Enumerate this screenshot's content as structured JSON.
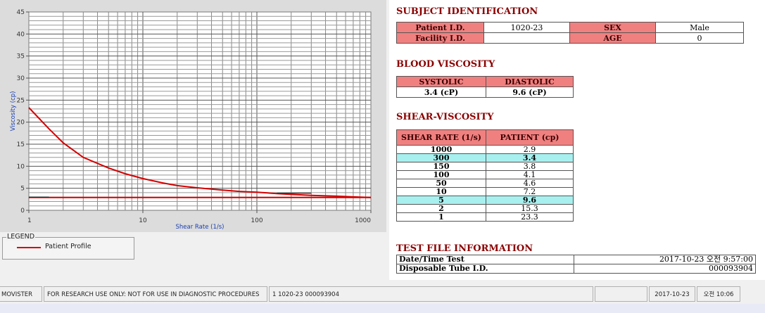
{
  "chart_data": {
    "type": "line",
    "xlabel": "Shear Rate (1/s)",
    "ylabel": "Viscosity (cp)",
    "xscale": "log",
    "xlim": [
      1,
      1000
    ],
    "ylim": [
      0,
      45
    ],
    "x_ticks": [
      "1",
      "10",
      "100",
      "1000"
    ],
    "y_ticks": [
      "0",
      "5",
      "10",
      "15",
      "20",
      "25",
      "30",
      "35",
      "40",
      "45"
    ],
    "grid": true,
    "series": [
      {
        "name": "Patient Profile",
        "color": "#d40000",
        "x": [
          1,
          1.5,
          2,
          3,
          5,
          7,
          10,
          15,
          20,
          30,
          50,
          70,
          100,
          150,
          200,
          300,
          500,
          700,
          1000
        ],
        "y": [
          23.3,
          18.5,
          15.3,
          12.0,
          9.6,
          8.3,
          7.2,
          6.2,
          5.6,
          5.1,
          4.6,
          4.3,
          4.1,
          3.8,
          3.6,
          3.4,
          3.2,
          3.05,
          2.9
        ]
      },
      {
        "color": "#d40000",
        "x": [
          1,
          1000
        ],
        "y": [
          2.9,
          2.9
        ]
      },
      {
        "color": "#333333",
        "x": [
          1,
          1.5
        ],
        "y": [
          3.0,
          3.0
        ]
      },
      {
        "color": "#333333",
        "x": [
          150,
          300
        ],
        "y": [
          3.9,
          3.9
        ]
      }
    ]
  },
  "legend": {
    "title": "LEGEND",
    "items": [
      {
        "label": "Patient Profile",
        "color": "#d40000"
      }
    ]
  },
  "subject": {
    "title": "SUBJECT IDENTIFICATION",
    "patient_id_label": "Patient I.D.",
    "patient_id": "1020-23",
    "sex_label": "SEX",
    "sex": "Male",
    "facility_id_label": "Facility I.D.",
    "facility_id": "",
    "age_label": "AGE",
    "age": "0"
  },
  "blood": {
    "title": "BLOOD VISCOSITY",
    "systolic_label": "SYSTOLIC",
    "diastolic_label": "DIASTOLIC",
    "systolic": "3.4 (cP)",
    "diastolic": "9.6 (cP)"
  },
  "shear": {
    "title": "SHEAR-VISCOSITY",
    "col_rate": "SHEAR RATE (1/s)",
    "col_patient": "PATIENT (cp)",
    "highlight_color": "#a8f0f0",
    "rows": [
      {
        "rate": "1000",
        "val": "2.9",
        "hl": false
      },
      {
        "rate": "300",
        "val": "3.4",
        "hl": true
      },
      {
        "rate": "150",
        "val": "3.8",
        "hl": false
      },
      {
        "rate": "100",
        "val": "4.1",
        "hl": false
      },
      {
        "rate": "50",
        "val": "4.6",
        "hl": false
      },
      {
        "rate": "10",
        "val": "7.2",
        "hl": false
      },
      {
        "rate": "5",
        "val": "9.6",
        "hl": true
      },
      {
        "rate": "2",
        "val": "15.3",
        "hl": false
      },
      {
        "rate": "1",
        "val": "23.3",
        "hl": false
      }
    ]
  },
  "test_file": {
    "title": "TEST FILE INFORMATION",
    "date_label": "Date/Time Test",
    "date_value": "2017-10-23  오전 9:57:00",
    "tube_label": "Disposable Tube I.D.",
    "tube_value": "000093904"
  },
  "status": {
    "app": "MOVISTER",
    "notice": "FOR RESEARCH USE ONLY: NOT FOR USE IN DIAGNOSTIC PROCEDURES",
    "record": "1  1020-23  000093904",
    "empty": "",
    "date": "2017-10-23",
    "time": "오전 10:06"
  }
}
